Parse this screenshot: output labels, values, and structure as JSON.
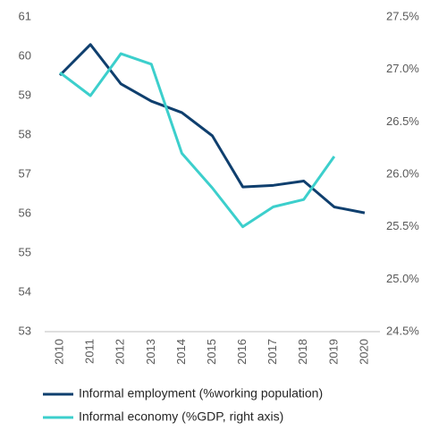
{
  "chart_data": {
    "type": "line",
    "categories": [
      "2010",
      "2011",
      "2012",
      "2013",
      "2014",
      "2015",
      "2016",
      "2017",
      "2018",
      "2019",
      "2020"
    ],
    "series": [
      {
        "name": "Informal employment (%working population)",
        "color": "#0f3f6e",
        "values": [
          59.52,
          60.3,
          59.3,
          58.86,
          58.57,
          57.98,
          56.68,
          56.72,
          56.83,
          56.17,
          56.02
        ]
      },
      {
        "name": "Informal economy (%GDP, right axis)",
        "color": "#3ccfcc",
        "axis": "y2",
        "values": [
          26.97,
          26.75,
          27.15,
          27.05,
          26.2,
          25.87,
          25.5,
          25.69,
          25.76,
          26.17,
          null
        ]
      }
    ],
    "ylim": [
      53,
      61
    ],
    "yticks": [
      53,
      54,
      55,
      56,
      57,
      58,
      59,
      60,
      61
    ],
    "y2lim": [
      24.5,
      27.5
    ],
    "y2ticks": [
      {
        "value": 24.5,
        "label": "24.5%"
      },
      {
        "value": 25,
        "label": "25.0%"
      },
      {
        "value": 25.5,
        "label": "25.5%"
      },
      {
        "value": 26,
        "label": "26.0%"
      },
      {
        "value": 26.5,
        "label": "26.5%"
      },
      {
        "value": 27,
        "label": "27.0%"
      },
      {
        "value": 27.5,
        "label": "27.5%"
      }
    ],
    "legend": "bottom"
  }
}
